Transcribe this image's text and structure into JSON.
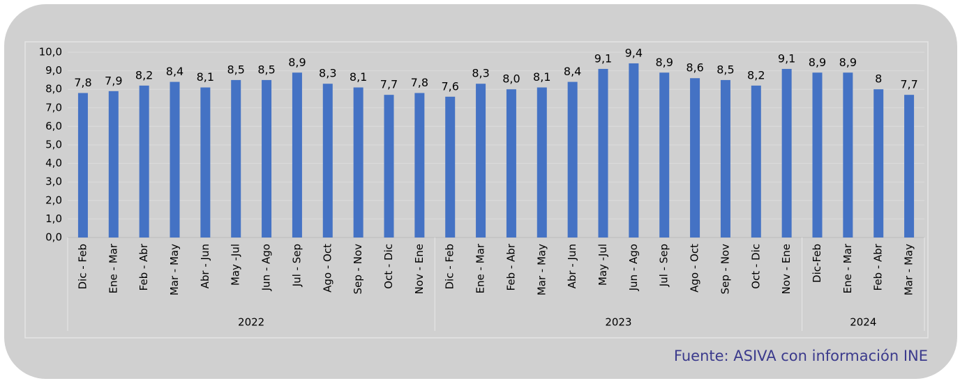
{
  "chart_data": {
    "type": "bar",
    "color": "#4472c4",
    "ylim": [
      0,
      10
    ],
    "yticks": [
      {
        "value": 0,
        "label": "0,0"
      },
      {
        "value": 1,
        "label": "1,0"
      },
      {
        "value": 2,
        "label": "2,0"
      },
      {
        "value": 3,
        "label": "3,0"
      },
      {
        "value": 4,
        "label": "4,0"
      },
      {
        "value": 5,
        "label": "5,0"
      },
      {
        "value": 6,
        "label": "6,0"
      },
      {
        "value": 7,
        "label": "7,0"
      },
      {
        "value": 8,
        "label": "8,0"
      },
      {
        "value": 9,
        "label": "9,0"
      },
      {
        "value": 10,
        "label": "10,0"
      }
    ],
    "grid": true,
    "groups": [
      {
        "name": "2022",
        "categories": [
          "Dic - Feb",
          "Ene - Mar",
          "Feb - Abr",
          "Mar - May",
          "Abr - Jun",
          "May -Jul",
          "Jun - Ago",
          "Jul - Sep",
          "Ago - Oct",
          "Sep - Nov",
          "Oct - Dic",
          "Nov - Ene"
        ],
        "values": [
          7.8,
          7.9,
          8.2,
          8.4,
          8.1,
          8.5,
          8.5,
          8.9,
          8.3,
          8.1,
          7.7,
          7.8
        ],
        "value_labels": [
          "7,8",
          "7,9",
          "8,2",
          "8,4",
          "8,1",
          "8,5",
          "8,5",
          "8,9",
          "8,3",
          "8,1",
          "7,7",
          "7,8"
        ]
      },
      {
        "name": "2023",
        "categories": [
          "Dic - Feb",
          "Ene - Mar",
          "Feb - Abr",
          "Mar - May",
          "Abr - Jun",
          "May -Jul",
          "Jun - Ago",
          "Jul - Sep",
          "Ago - Oct",
          "Sep - Nov",
          "Oct - Dic",
          "Nov - Ene"
        ],
        "values": [
          7.6,
          8.3,
          8.0,
          8.1,
          8.4,
          9.1,
          9.4,
          8.9,
          8.6,
          8.5,
          8.2,
          9.1
        ],
        "value_labels": [
          "7,6",
          "8,3",
          "8,0",
          "8,1",
          "8,4",
          "9,1",
          "9,4",
          "8,9",
          "8,6",
          "8,5",
          "8,2",
          "9,1"
        ]
      },
      {
        "name": "2024",
        "categories": [
          "Dic-Feb",
          "Ene - Mar",
          "Feb - Abr",
          "Mar - May"
        ],
        "values": [
          8.9,
          8.9,
          8,
          7.7
        ],
        "value_labels": [
          "8,9",
          "8,9",
          "8",
          "7,7"
        ]
      }
    ],
    "source": "Fuente: ASIVA con información INE"
  }
}
